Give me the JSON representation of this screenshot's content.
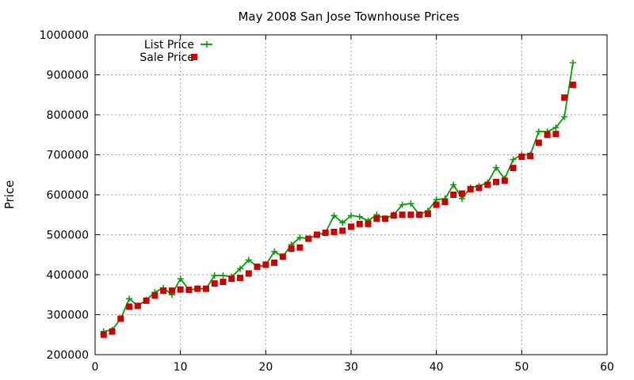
{
  "chart_data": {
    "type": "line",
    "title": "May 2008 San Jose Townhouse Prices",
    "xlabel": "",
    "ylabel": "Price",
    "xlim": [
      0,
      60
    ],
    "ylim": [
      200000,
      1000000
    ],
    "x_ticks": [
      0,
      10,
      20,
      30,
      40,
      50,
      60
    ],
    "y_ticks": [
      200000,
      300000,
      400000,
      500000,
      600000,
      700000,
      800000,
      900000,
      1000000
    ],
    "grid": true,
    "legend_position": "top-left",
    "x": [
      1,
      2,
      3,
      4,
      5,
      6,
      7,
      8,
      9,
      10,
      11,
      12,
      13,
      14,
      15,
      16,
      17,
      18,
      19,
      20,
      21,
      22,
      23,
      24,
      25,
      26,
      27,
      28,
      29,
      30,
      31,
      32,
      33,
      34,
      35,
      36,
      37,
      38,
      39,
      40,
      41,
      42,
      43,
      44,
      45,
      46,
      47,
      48,
      49,
      50,
      51,
      52,
      53,
      54,
      55,
      56
    ],
    "series": [
      {
        "name": "List Price",
        "style": "line-points",
        "marker": "plus",
        "color": "#00a000",
        "values": [
          258000,
          262000,
          290000,
          340000,
          322000,
          337000,
          356000,
          367000,
          350000,
          390000,
          362000,
          365000,
          365000,
          398000,
          398000,
          395000,
          415000,
          437000,
          420000,
          424000,
          458000,
          445000,
          475000,
          493000,
          490000,
          500000,
          505000,
          548000,
          530000,
          548000,
          545000,
          535000,
          550000,
          540000,
          550000,
          575000,
          578000,
          550000,
          560000,
          588000,
          590000,
          625000,
          590000,
          618000,
          622000,
          630000,
          668000,
          640000,
          688000,
          700000,
          700000,
          758000,
          758000,
          768000,
          795000,
          930000
        ]
      },
      {
        "name": "Sale Price",
        "style": "points",
        "marker": "square",
        "color": "#cc0000",
        "values": [
          250000,
          258000,
          290000,
          320000,
          322000,
          335000,
          348000,
          360000,
          360000,
          363000,
          362000,
          365000,
          365000,
          378000,
          382000,
          390000,
          392000,
          403000,
          420000,
          425000,
          430000,
          445000,
          465000,
          468000,
          490000,
          500000,
          505000,
          507000,
          510000,
          520000,
          527000,
          527000,
          540000,
          540000,
          548000,
          550000,
          550000,
          550000,
          552000,
          575000,
          582000,
          600000,
          603000,
          614000,
          617000,
          625000,
          632000,
          635000,
          667000,
          695000,
          697000,
          730000,
          750000,
          752000,
          843000,
          875000
        ]
      }
    ]
  }
}
